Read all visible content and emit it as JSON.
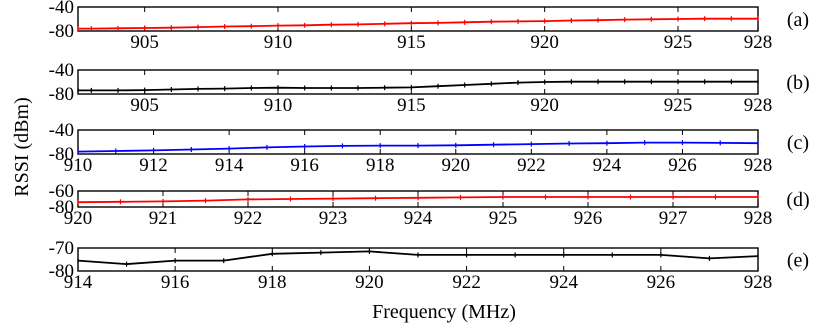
{
  "figure": {
    "ylabel": "RSSI (dBm)",
    "xlabel": "Frequency (MHz)"
  },
  "chart_data": [
    {
      "type": "line",
      "panel_label": "(a)",
      "xlim": [
        902.5,
        928
      ],
      "ylim": [
        -80,
        -40
      ],
      "xticks": [
        905,
        910,
        915,
        920,
        925,
        928
      ],
      "yticks": [
        -40,
        -80
      ],
      "color": "#ff0000",
      "grid": false,
      "series": [
        {
          "x": [
            902.5,
            903,
            904,
            905,
            906,
            907,
            908,
            909,
            910,
            911,
            912,
            913,
            914,
            915,
            916,
            917,
            918,
            919,
            920,
            921,
            922,
            923,
            924,
            925,
            926,
            927,
            928
          ],
          "y": [
            -76,
            -76,
            -75.5,
            -75,
            -74.5,
            -73.5,
            -72.5,
            -72,
            -71,
            -70.5,
            -69.5,
            -69,
            -68,
            -67,
            -66.5,
            -65.5,
            -64.5,
            -64,
            -63.5,
            -62.5,
            -62,
            -61,
            -60.5,
            -60,
            -59.5,
            -59.5,
            -59.5
          ]
        }
      ]
    },
    {
      "type": "line",
      "panel_label": "(b)",
      "xlim": [
        902.5,
        928
      ],
      "ylim": [
        -80,
        -40
      ],
      "xticks": [
        905,
        910,
        915,
        920,
        925,
        928
      ],
      "yticks": [
        -40,
        -80
      ],
      "color": "#000000",
      "grid": false,
      "series": [
        {
          "x": [
            902.5,
            903,
            904,
            905,
            906,
            907,
            908,
            909,
            910,
            911,
            912,
            913,
            914,
            915,
            916,
            917,
            918,
            919,
            920,
            921,
            922,
            923,
            924,
            925,
            926,
            927,
            928
          ],
          "y": [
            -74,
            -74,
            -74,
            -73.5,
            -72.5,
            -71.5,
            -71,
            -70,
            -69.5,
            -70,
            -70,
            -70,
            -69.5,
            -69,
            -67,
            -65,
            -63,
            -61,
            -60,
            -59.5,
            -59.5,
            -59.5,
            -59.5,
            -59.5,
            -59.5,
            -59.5,
            -59.5
          ]
        }
      ]
    },
    {
      "type": "line",
      "panel_label": "(c)",
      "xlim": [
        910,
        928
      ],
      "ylim": [
        -80,
        -40
      ],
      "xticks": [
        910,
        912,
        914,
        916,
        918,
        920,
        922,
        924,
        926,
        928
      ],
      "yticks": [
        -40,
        -80
      ],
      "color": "#0000ff",
      "grid": false,
      "series": [
        {
          "x": [
            910,
            911,
            912,
            913,
            914,
            915,
            916,
            917,
            918,
            919,
            920,
            921,
            922,
            923,
            924,
            925,
            926,
            927,
            928
          ],
          "y": [
            -76,
            -75,
            -74,
            -72.5,
            -71,
            -69,
            -67.5,
            -66.5,
            -66,
            -66,
            -65.5,
            -64.5,
            -63.5,
            -62.5,
            -62,
            -61,
            -61,
            -61.5,
            -62
          ]
        }
      ]
    },
    {
      "type": "line",
      "panel_label": "(d)",
      "xlim": [
        920,
        928
      ],
      "ylim": [
        -80,
        -60
      ],
      "xticks": [
        920,
        921,
        922,
        923,
        924,
        925,
        926,
        927,
        928
      ],
      "yticks": [
        -60,
        -80
      ],
      "color": "#ff0000",
      "grid": false,
      "series": [
        {
          "x": [
            920,
            920.5,
            921,
            921.5,
            922,
            922.5,
            923,
            923.5,
            924,
            924.5,
            925,
            925.5,
            926,
            926.5,
            927,
            927.5,
            928
          ],
          "y": [
            -74,
            -73.5,
            -73,
            -72,
            -70.5,
            -70,
            -69.5,
            -69,
            -68.5,
            -68,
            -67.5,
            -67.5,
            -67.5,
            -67.5,
            -67.5,
            -67.5,
            -67.5
          ]
        }
      ]
    },
    {
      "type": "line",
      "panel_label": "(e)",
      "xlim": [
        914,
        928
      ],
      "ylim": [
        -80,
        -70
      ],
      "xticks": [
        914,
        916,
        918,
        920,
        922,
        924,
        926,
        928
      ],
      "yticks": [
        -70,
        -80
      ],
      "color": "#000000",
      "grid": false,
      "series": [
        {
          "x": [
            914,
            915,
            916,
            917,
            918,
            919,
            920,
            921,
            922,
            923,
            924,
            925,
            926,
            927,
            928
          ],
          "y": [
            -75.5,
            -77,
            -75.5,
            -75.5,
            -72.5,
            -72,
            -71.5,
            -73,
            -73,
            -73,
            -73,
            -73,
            -73,
            -74.5,
            -73.5
          ]
        }
      ]
    }
  ]
}
